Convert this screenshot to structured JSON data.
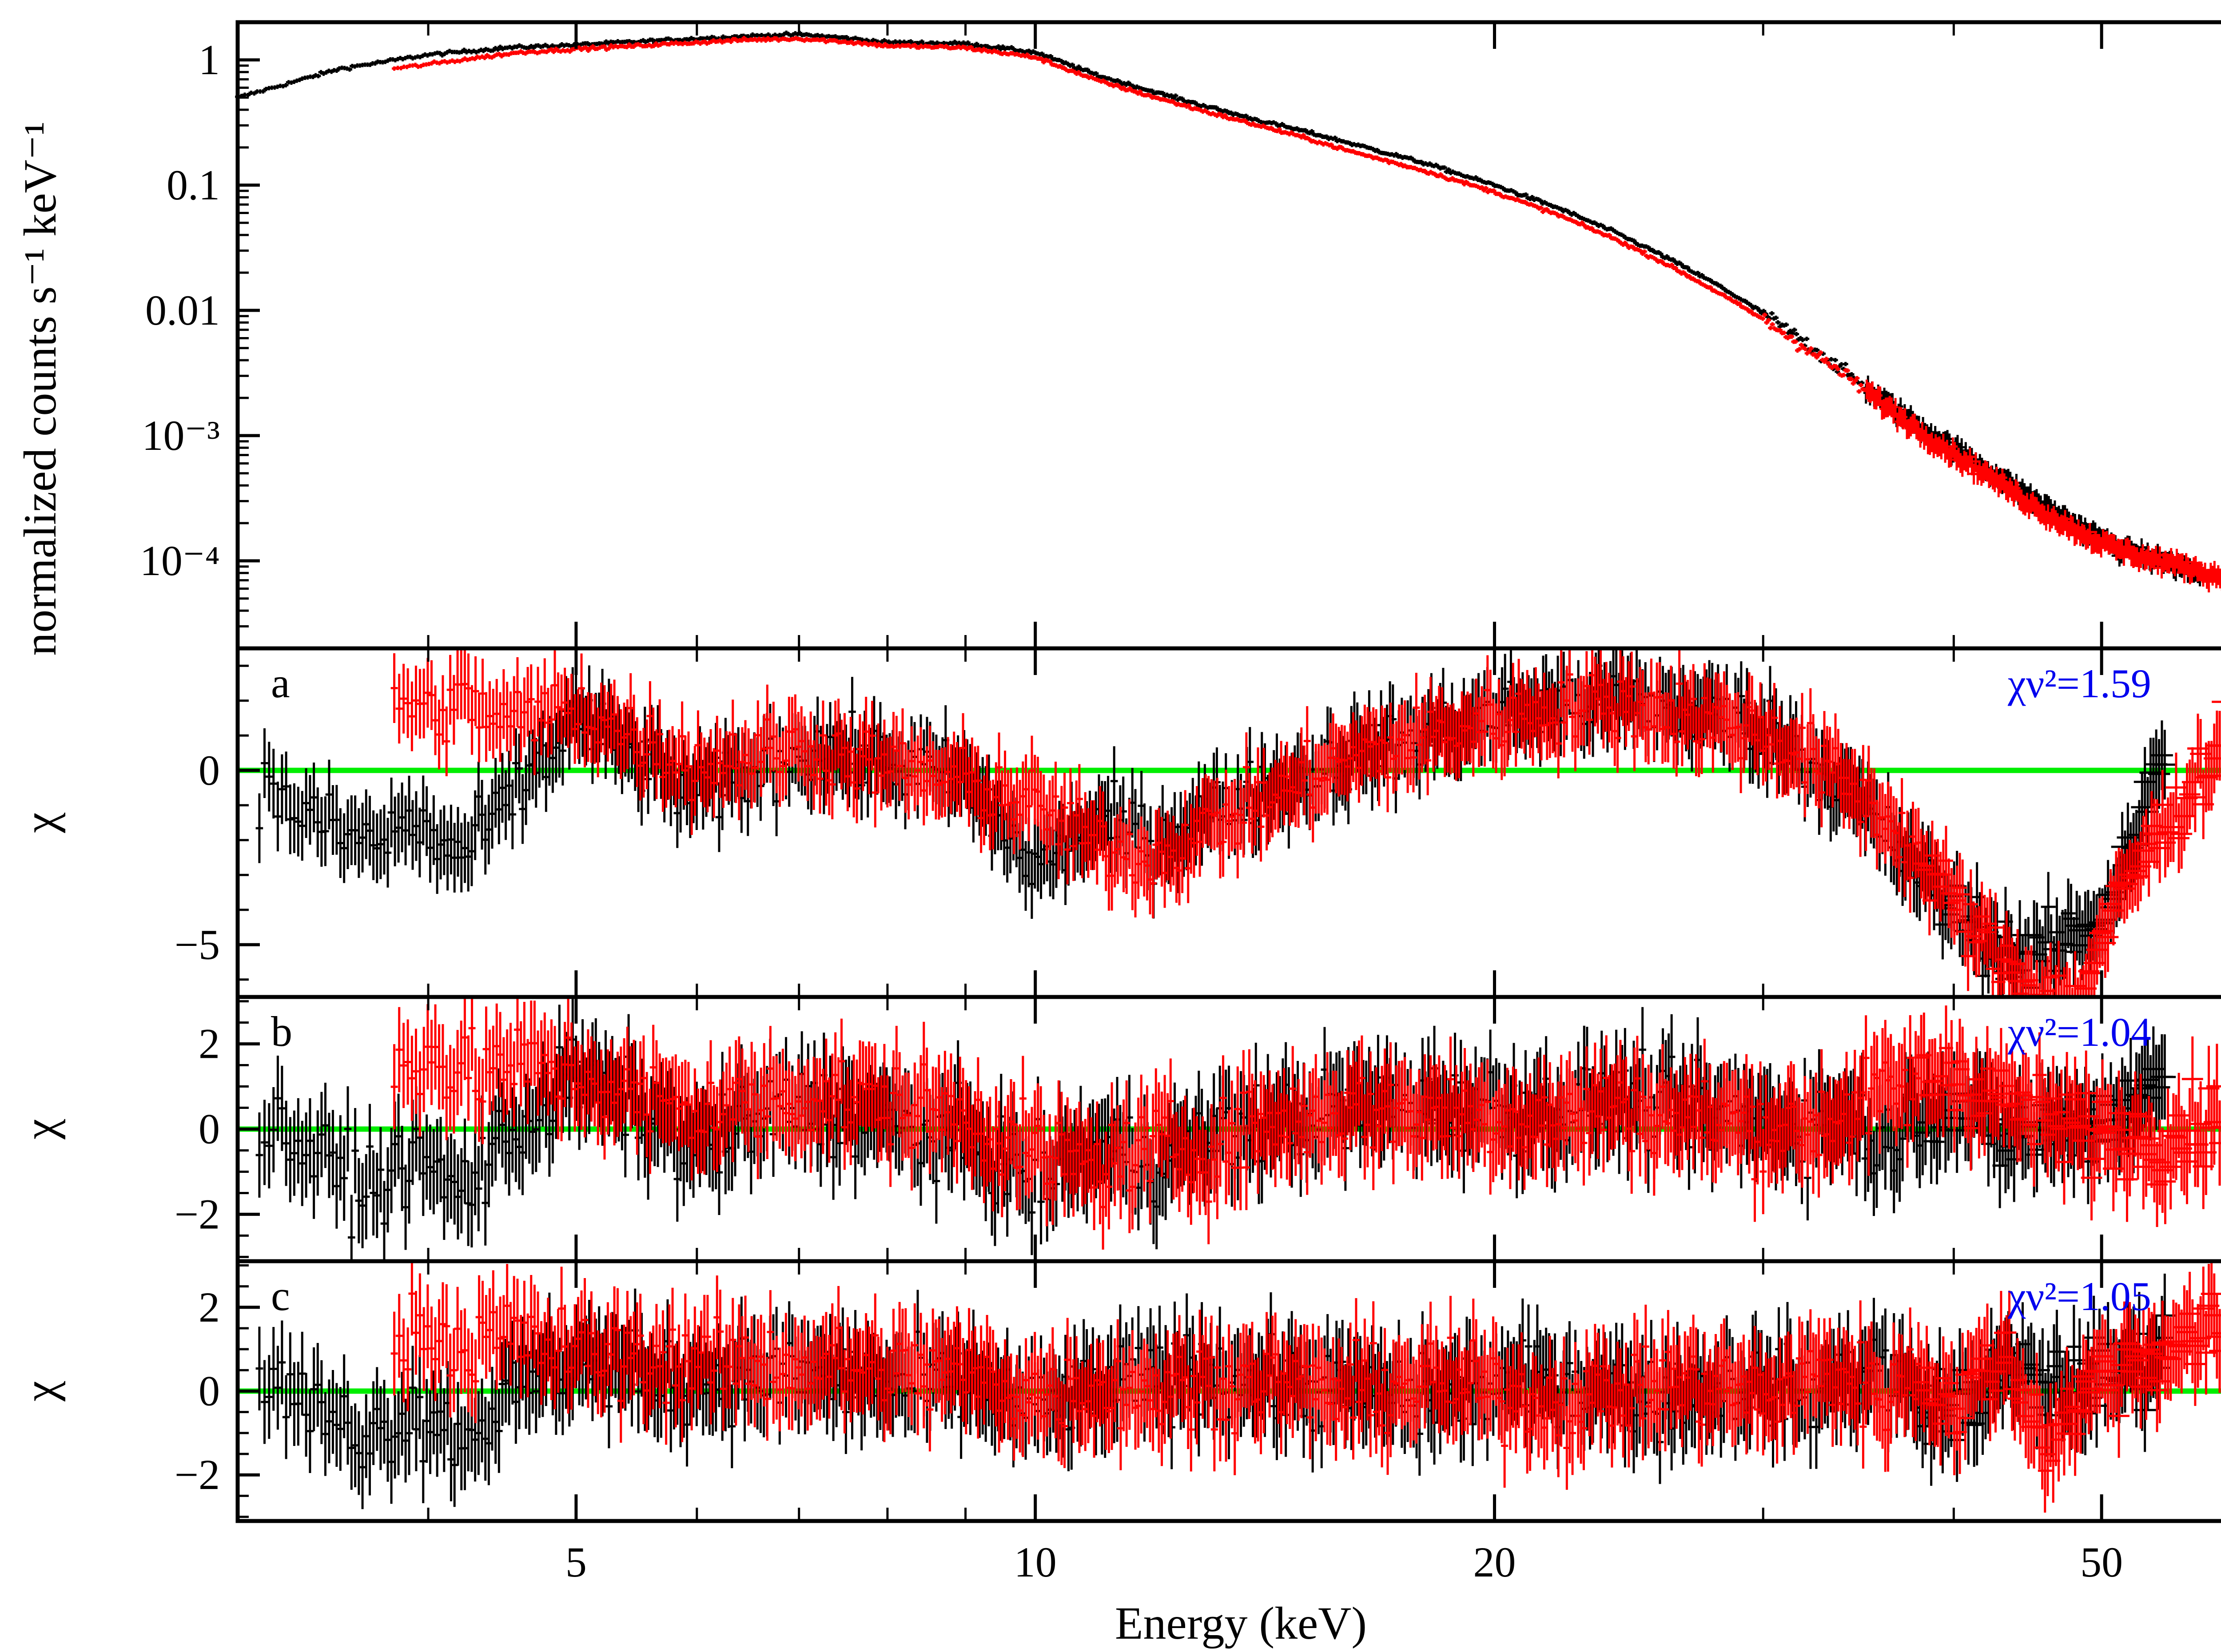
{
  "colors": {
    "series_1": "#000000",
    "series_2": "#ff0000",
    "zero_line": "#00ee00",
    "chi_annotation": "#0000ee"
  },
  "chart_data": [
    {
      "type": "scatter",
      "panel": "spectrum",
      "xlabel": "Energy (keV)",
      "ylabel": "normalized counts s⁻¹ keV⁻¹",
      "xscale": "log",
      "yscale": "log",
      "xlim": [
        3,
        62
      ],
      "ylim": [
        2e-05,
        2
      ],
      "xticks": [
        5,
        10,
        20,
        50
      ],
      "xtick_labels": [
        "5",
        "10",
        "20",
        "50"
      ],
      "yticks": [
        1,
        0.1,
        0.01,
        0.001,
        0.0001
      ],
      "ytick_labels": [
        "1",
        "0.1",
        "0.01",
        "10⁻³",
        "10⁻⁴"
      ],
      "series": [
        {
          "name": "black",
          "x": [
            3,
            3.5,
            4,
            4.5,
            5,
            5.5,
            6,
            6.5,
            7,
            7.5,
            8,
            9,
            10,
            11,
            12,
            13,
            14,
            15,
            16,
            18,
            20,
            22,
            24,
            26,
            28,
            30,
            32,
            34,
            36,
            38,
            40,
            42,
            44,
            46,
            48,
            50,
            52,
            55,
            58
          ],
          "y": [
            0.5,
            0.85,
            1.1,
            1.25,
            1.32,
            1.4,
            1.48,
            1.55,
            1.6,
            1.5,
            1.38,
            1.35,
            1.15,
            0.75,
            0.55,
            0.42,
            0.33,
            0.27,
            0.22,
            0.15,
            0.1,
            0.066,
            0.042,
            0.026,
            0.016,
            0.0095,
            0.0055,
            0.0032,
            0.0019,
            0.0012,
            0.0008,
            0.00055,
            0.00038,
            0.00027,
            0.0002,
            0.00015,
            0.00012,
            0.0001,
            8e-05
          ]
        },
        {
          "name": "red",
          "x": [
            3.8,
            4.2,
            4.6,
            5,
            5.5,
            6,
            6.5,
            7,
            7.5,
            8,
            9,
            10,
            11,
            12,
            13,
            14,
            15,
            16,
            18,
            20,
            22,
            24,
            26,
            28,
            30,
            32,
            34,
            36,
            38,
            40,
            42,
            44,
            46,
            48,
            50,
            53,
            57,
            61
          ],
          "y": [
            0.85,
            1.0,
            1.15,
            1.22,
            1.3,
            1.38,
            1.45,
            1.48,
            1.4,
            1.3,
            1.25,
            1.05,
            0.68,
            0.5,
            0.38,
            0.3,
            0.24,
            0.19,
            0.13,
            0.088,
            0.058,
            0.037,
            0.023,
            0.014,
            0.0085,
            0.005,
            0.003,
            0.0018,
            0.0011,
            0.00072,
            0.0005,
            0.00034,
            0.00024,
            0.00018,
            0.00014,
            0.00011,
            9e-05,
            7e-05
          ]
        }
      ]
    },
    {
      "type": "scatter",
      "panel": "residuals-a",
      "label": "a",
      "annotation": "χν²=1.59",
      "ylabel": "χ",
      "xscale": "log",
      "xlim": [
        3,
        62
      ],
      "ylim": [
        -6.5,
        3.5
      ],
      "yticks": [
        0,
        -5
      ],
      "ytick_labels": [
        "0",
        "−5"
      ],
      "series": [
        {
          "name": "black",
          "x": [
            3.1,
            3.3,
            3.5,
            3.7,
            3.9,
            4.2,
            4.5,
            5,
            5.5,
            6,
            7,
            8,
            9,
            10,
            11,
            12,
            13,
            14,
            15,
            16,
            18,
            20,
            22,
            24,
            26,
            28,
            30,
            32,
            34,
            36,
            38,
            40,
            42,
            45,
            50,
            55
          ],
          "y": [
            -0.5,
            -1.2,
            -1.8,
            -2.1,
            -1.5,
            -2.5,
            -1.0,
            1.5,
            0.3,
            -0.8,
            0.6,
            0.2,
            -0.3,
            -2.8,
            -1.5,
            -2.0,
            -1.2,
            -0.6,
            -0.2,
            0.4,
            1.0,
            1.6,
            1.9,
            2.0,
            1.8,
            1.6,
            1.2,
            0.4,
            -0.6,
            -1.8,
            -3.0,
            -4.0,
            -4.8,
            -5.5,
            -4.2,
            0.4
          ]
        },
        {
          "name": "red",
          "x": [
            3.8,
            4.0,
            4.2,
            4.5,
            5,
            5.5,
            6,
            7,
            8,
            9,
            10,
            11,
            12,
            13,
            14,
            15,
            16,
            18,
            20,
            22,
            24,
            26,
            28,
            30,
            32,
            34,
            36,
            38,
            40,
            42,
            45,
            48,
            52,
            60
          ],
          "y": [
            2.2,
            1.6,
            2.0,
            1.4,
            1.8,
            0.9,
            0.1,
            0.7,
            0.1,
            -0.4,
            -1.0,
            -2.2,
            -2.5,
            -1.6,
            -1.0,
            -0.3,
            0.3,
            0.9,
            1.4,
            1.8,
            1.9,
            1.7,
            1.4,
            1.1,
            0.4,
            -0.4,
            -1.3,
            -2.5,
            -3.8,
            -5.0,
            -6.2,
            -6.8,
            -3.2,
            0.8
          ]
        }
      ]
    },
    {
      "type": "scatter",
      "panel": "residuals-b",
      "label": "b",
      "annotation": "χν²=1.04",
      "ylabel": "χ",
      "xscale": "log",
      "xlim": [
        3,
        62
      ],
      "ylim": [
        -3.1,
        3.1
      ],
      "yticks": [
        2,
        0,
        -2
      ],
      "ytick_labels": [
        "2",
        "0",
        "−2"
      ],
      "series": [
        {
          "name": "black",
          "x": [
            3.1,
            3.3,
            3.5,
            3.7,
            3.9,
            4.2,
            4.5,
            5,
            5.5,
            6,
            7,
            8,
            9,
            10,
            11,
            12,
            13,
            14,
            15,
            16,
            18,
            20,
            22,
            24,
            26,
            28,
            30,
            32,
            34,
            36,
            38,
            40,
            43,
            46,
            50,
            55
          ],
          "y": [
            0.3,
            -0.4,
            -1.0,
            -1.4,
            -0.6,
            -1.5,
            -0.2,
            1.2,
            0.4,
            -0.5,
            0.6,
            0.1,
            -0.3,
            -1.2,
            -0.4,
            -0.8,
            -0.2,
            0.1,
            0.3,
            0.5,
            0.6,
            0.5,
            0.4,
            0.7,
            0.5,
            0.3,
            0.2,
            0.1,
            0.3,
            -0.4,
            0.5,
            0.6,
            -0.2,
            0.0,
            0.2,
            1.1
          ]
        },
        {
          "name": "red",
          "x": [
            3.8,
            4.0,
            4.2,
            4.5,
            5,
            5.5,
            6,
            7,
            8,
            9,
            10,
            11,
            12,
            13,
            14,
            15,
            16,
            18,
            20,
            22,
            24,
            26,
            28,
            30,
            32,
            34,
            36,
            38,
            40,
            43,
            46,
            50,
            55,
            60
          ],
          "y": [
            1.6,
            1.8,
            1.2,
            1.5,
            1.3,
            0.7,
            0.4,
            0.8,
            0.6,
            0.3,
            -0.6,
            -0.9,
            -0.4,
            -0.5,
            0.1,
            0.2,
            0.5,
            0.4,
            0.3,
            0.2,
            0.6,
            0.3,
            0.2,
            0.1,
            0.0,
            0.4,
            0.8,
            1.1,
            1.3,
            0.7,
            0.2,
            -0.1,
            -0.2,
            0.3
          ]
        }
      ]
    },
    {
      "type": "scatter",
      "panel": "residuals-c",
      "label": "c",
      "annotation": "χν²=1.05",
      "ylabel": "χ",
      "xlabel": "Energy (keV)",
      "xscale": "log",
      "xlim": [
        3,
        62
      ],
      "ylim": [
        -3.1,
        3.1
      ],
      "yticks": [
        2,
        0,
        -2
      ],
      "ytick_labels": [
        "2",
        "0",
        "−2"
      ],
      "xticks": [
        5,
        10,
        20,
        50
      ],
      "xtick_labels": [
        "5",
        "10",
        "20",
        "50"
      ],
      "series": [
        {
          "name": "black",
          "x": [
            3.1,
            3.3,
            3.5,
            3.7,
            3.9,
            4.2,
            4.5,
            5,
            5.5,
            6,
            7,
            8,
            9,
            10,
            11,
            12,
            13,
            14,
            15,
            16,
            18,
            20,
            22,
            24,
            26,
            28,
            30,
            32,
            34,
            36,
            38,
            40,
            43,
            46,
            50,
            55
          ],
          "y": [
            0.5,
            -0.3,
            -0.8,
            -1.0,
            -0.4,
            -1.1,
            -0.2,
            0.8,
            0.3,
            0.2,
            0.4,
            0.1,
            0.2,
            -0.5,
            0.0,
            0.3,
            0.5,
            0.2,
            0.1,
            0.0,
            -0.2,
            0.1,
            0.3,
            0.0,
            -0.2,
            0.1,
            0.2,
            -0.1,
            0.3,
            0.6,
            -0.3,
            -0.5,
            0.4,
            0.1,
            0.3,
            1.0
          ]
        },
        {
          "name": "red",
          "x": [
            3.8,
            4.0,
            4.2,
            4.5,
            5,
            5.5,
            6,
            7,
            8,
            9,
            10,
            11,
            12,
            13,
            14,
            15,
            16,
            18,
            20,
            22,
            24,
            26,
            28,
            30,
            32,
            34,
            36,
            38,
            40,
            43,
            46,
            50,
            55,
            60
          ],
          "y": [
            1.2,
            1.6,
            1.0,
            1.3,
            0.9,
            0.8,
            0.7,
            0.6,
            0.5,
            0.4,
            -0.1,
            0.1,
            0.0,
            0.2,
            0.3,
            0.1,
            -0.1,
            0.2,
            0.0,
            -0.3,
            -0.1,
            0.2,
            0.1,
            -0.2,
            0.3,
            0.4,
            -0.2,
            0.5,
            -0.4,
            0.9,
            -1.2,
            0.4,
            1.0,
            1.4
          ]
        }
      ]
    }
  ]
}
